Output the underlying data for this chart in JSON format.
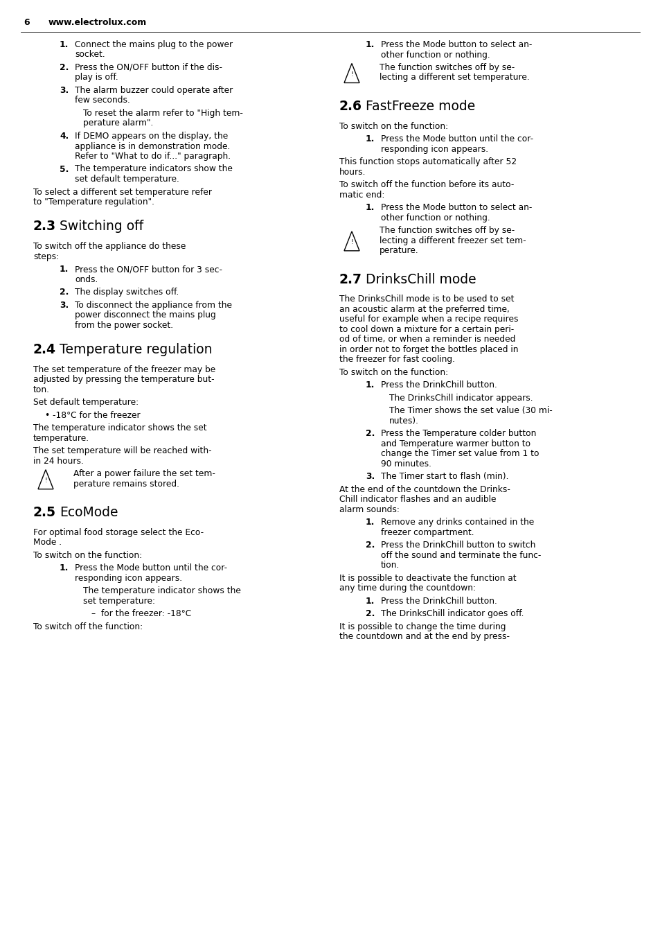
{
  "bg": "#ffffff",
  "hdr_page": "6",
  "hdr_site": "www.electrolux.com",
  "left": [
    {
      "t": "li",
      "n": "1.",
      "lines": [
        "Connect the mains plug to the power",
        "socket."
      ]
    },
    {
      "t": "li",
      "n": "2.",
      "lines": [
        "Press the ON/OFF button if the dis-",
        "play is off."
      ]
    },
    {
      "t": "li",
      "n": "3.",
      "lines": [
        "The alarm buzzer could operate after",
        "few seconds."
      ]
    },
    {
      "t": "p",
      "ind": 1,
      "lines": [
        "To reset the alarm refer to \"High tem-",
        "perature alarm\"."
      ]
    },
    {
      "t": "li",
      "n": "4.",
      "lines": [
        "If DEMO appears on the display, the",
        "appliance is in demonstration mode.",
        "Refer to \"What to do if...\" paragraph."
      ]
    },
    {
      "t": "li",
      "n": "5.",
      "lines": [
        "The temperature indicators show the",
        "set default temperature."
      ]
    },
    {
      "t": "p",
      "ind": 0,
      "lines": [
        "To select a different set temperature refer",
        "to \"Temperature regulation\"."
      ]
    },
    {
      "t": "h",
      "num": "2.3",
      "title": "Switching off"
    },
    {
      "t": "p",
      "ind": 0,
      "lines": [
        "To switch off the appliance do these",
        "steps:"
      ]
    },
    {
      "t": "li",
      "n": "1.",
      "lines": [
        "Press the ON/OFF button for 3 sec-",
        "onds."
      ]
    },
    {
      "t": "li",
      "n": "2.",
      "lines": [
        "The display switches off."
      ]
    },
    {
      "t": "li",
      "n": "3.",
      "lines": [
        "To disconnect the appliance from the",
        "power disconnect the mains plug",
        "from the power socket."
      ]
    },
    {
      "t": "h",
      "num": "2.4",
      "title": "Temperature regulation"
    },
    {
      "t": "p",
      "ind": 0,
      "lines": [
        "The set temperature of the freezer may be",
        "adjusted by pressing the temperature but-",
        "ton."
      ]
    },
    {
      "t": "p",
      "ind": 0,
      "lines": [
        "Set default temperature:"
      ]
    },
    {
      "t": "b",
      "lines": [
        "-18°C for the freezer"
      ]
    },
    {
      "t": "p",
      "ind": 0,
      "lines": [
        "The temperature indicator shows the set",
        "temperature."
      ]
    },
    {
      "t": "p",
      "ind": 0,
      "lines": [
        "The set temperature will be reached with-",
        "in 24 hours."
      ]
    },
    {
      "t": "w",
      "lines": [
        "After a power failure the set tem-",
        "perature remains stored."
      ]
    },
    {
      "t": "h",
      "num": "2.5",
      "title": "EcoMode"
    },
    {
      "t": "p",
      "ind": 0,
      "lines": [
        "For optimal food storage select the Eco-",
        "Mode ."
      ]
    },
    {
      "t": "p",
      "ind": 0,
      "lines": [
        "To switch on the function:"
      ]
    },
    {
      "t": "li",
      "n": "1.",
      "lines": [
        "Press the Mode button until the cor-",
        "responding icon appears."
      ]
    },
    {
      "t": "p",
      "ind": 1,
      "lines": [
        "The temperature indicator shows the",
        "set temperature:"
      ]
    },
    {
      "t": "p",
      "ind": 2,
      "lines": [
        "–  for the freezer: -18°C"
      ]
    },
    {
      "t": "p",
      "ind": 0,
      "lines": [
        "To switch off the function:"
      ]
    }
  ],
  "right": [
    {
      "t": "li",
      "n": "1.",
      "lines": [
        "Press the Mode button to select an-",
        "other function or nothing."
      ]
    },
    {
      "t": "w",
      "lines": [
        "The function switches off by se-",
        "lecting a different set temperature."
      ]
    },
    {
      "t": "h",
      "num": "2.6",
      "title": "FastFreeze mode"
    },
    {
      "t": "p",
      "ind": 0,
      "lines": [
        "To switch on the function:"
      ]
    },
    {
      "t": "li",
      "n": "1.",
      "lines": [
        "Press the Mode button until the cor-",
        "responding icon appears."
      ]
    },
    {
      "t": "p",
      "ind": 0,
      "lines": [
        "This function stops automatically after 52",
        "hours."
      ]
    },
    {
      "t": "p",
      "ind": 0,
      "lines": [
        "To switch off the function before its auto-",
        "matic end:"
      ]
    },
    {
      "t": "li",
      "n": "1.",
      "lines": [
        "Press the Mode button to select an-",
        "other function or nothing."
      ]
    },
    {
      "t": "w",
      "lines": [
        "The function switches off by se-",
        "lecting a different freezer set tem-",
        "perature."
      ]
    },
    {
      "t": "h",
      "num": "2.7",
      "title": "DrinksChill mode"
    },
    {
      "t": "p",
      "ind": 0,
      "lines": [
        "The DrinksChill mode is to be used to set",
        "an acoustic alarm at the preferred time,",
        "useful for example when a recipe requires",
        "to cool down a mixture for a certain peri-",
        "od of time, or when a reminder is needed",
        "in order not to forget the bottles placed in",
        "the freezer for fast cooling."
      ]
    },
    {
      "t": "p",
      "ind": 0,
      "lines": [
        "To switch on the function:"
      ]
    },
    {
      "t": "li",
      "n": "1.",
      "lines": [
        "Press the DrinkChill button."
      ]
    },
    {
      "t": "p",
      "ind": 1,
      "lines": [
        "The DrinksChill indicator appears."
      ]
    },
    {
      "t": "p",
      "ind": 1,
      "lines": [
        "The Timer shows the set value (30 mi-",
        "nutes)."
      ]
    },
    {
      "t": "li",
      "n": "2.",
      "lines": [
        "Press the Temperature colder button",
        "and Temperature warmer button to",
        "change the Timer set value from 1 to",
        "90 minutes."
      ]
    },
    {
      "t": "li",
      "n": "3.",
      "lines": [
        "The Timer start to flash (min)."
      ]
    },
    {
      "t": "p",
      "ind": 0,
      "lines": [
        "At the end of the countdown the Drinks-",
        "Chill indicator flashes and an audible",
        "alarm sounds:"
      ]
    },
    {
      "t": "li",
      "n": "1.",
      "lines": [
        "Remove any drinks contained in the",
        "freezer compartment."
      ]
    },
    {
      "t": "li",
      "n": "2.",
      "lines": [
        "Press the DrinkChill button to switch",
        "off the sound and terminate the func-",
        "tion."
      ]
    },
    {
      "t": "p",
      "ind": 0,
      "lines": [
        "It is possible to deactivate the function at",
        "any time during the countdown:"
      ]
    },
    {
      "t": "li",
      "n": "1.",
      "lines": [
        "Press the DrinkChill button."
      ]
    },
    {
      "t": "li",
      "n": "2.",
      "lines": [
        "The DrinksChill indicator goes off."
      ]
    },
    {
      "t": "p",
      "ind": 0,
      "lines": [
        "It is possible to change the time during",
        "the countdown and at the end by press-"
      ]
    }
  ]
}
